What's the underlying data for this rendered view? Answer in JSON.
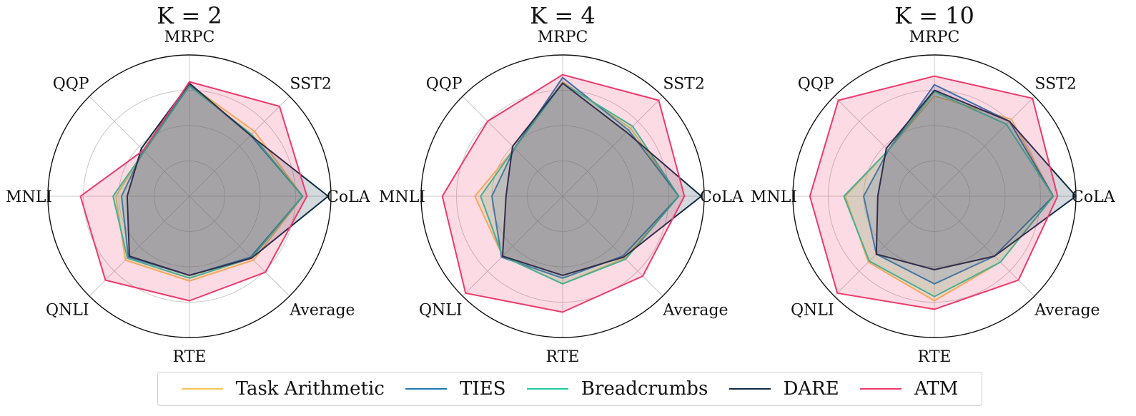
{
  "series_styles": [
    {
      "name": "Task Arithmetic",
      "color": "#f5c35a"
    },
    {
      "name": "TIES",
      "color": "#1f78b4"
    },
    {
      "name": "Breadcrumbs",
      "color": "#1fcc9b"
    },
    {
      "name": "DARE",
      "color": "#0d2b45"
    },
    {
      "name": "ATM",
      "color": "#ee3a6a"
    }
  ],
  "chart_data": [
    {
      "type": "radar",
      "title": "K = 2",
      "axes": [
        "CoLA",
        "SST2",
        "MRPC",
        "QQP",
        "MNLI",
        "QNLI",
        "RTE",
        "Average"
      ],
      "rlim": [
        0,
        1
      ],
      "grid": true,
      "series": [
        {
          "name": "Task Arithmetic",
          "values": [
            0.8,
            0.65,
            0.79,
            0.45,
            0.52,
            0.64,
            0.6,
            0.64
          ]
        },
        {
          "name": "TIES",
          "values": [
            0.8,
            0.61,
            0.79,
            0.46,
            0.48,
            0.61,
            0.56,
            0.61
          ]
        },
        {
          "name": "Breadcrumbs",
          "values": [
            0.8,
            0.62,
            0.78,
            0.45,
            0.54,
            0.62,
            0.58,
            0.62
          ]
        },
        {
          "name": "DARE",
          "values": [
            0.98,
            0.61,
            0.8,
            0.48,
            0.44,
            0.6,
            0.56,
            0.62
          ]
        },
        {
          "name": "ATM",
          "values": [
            0.83,
            0.9,
            0.81,
            0.46,
            0.77,
            0.84,
            0.74,
            0.76
          ]
        }
      ]
    },
    {
      "type": "radar",
      "title": "K = 4",
      "axes": [
        "CoLA",
        "SST2",
        "MRPC",
        "QQP",
        "MNLI",
        "QNLI",
        "RTE",
        "Average"
      ],
      "rlim": [
        0,
        1
      ],
      "grid": true,
      "series": [
        {
          "name": "Task Arithmetic",
          "values": [
            0.82,
            0.68,
            0.81,
            0.48,
            0.62,
            0.6,
            0.62,
            0.62
          ]
        },
        {
          "name": "TIES",
          "values": [
            0.82,
            0.66,
            0.84,
            0.48,
            0.5,
            0.61,
            0.58,
            0.6
          ]
        },
        {
          "name": "Breadcrumbs",
          "values": [
            0.82,
            0.7,
            0.8,
            0.48,
            0.58,
            0.6,
            0.62,
            0.63
          ]
        },
        {
          "name": "DARE",
          "values": [
            0.98,
            0.64,
            0.8,
            0.5,
            0.4,
            0.6,
            0.56,
            0.61
          ]
        },
        {
          "name": "ATM",
          "values": [
            0.86,
            0.96,
            0.86,
            0.75,
            0.85,
            0.97,
            0.82,
            0.8
          ]
        }
      ]
    },
    {
      "type": "radar",
      "title": "K = 10",
      "axes": [
        "CoLA",
        "SST2",
        "MRPC",
        "QQP",
        "MNLI",
        "QNLI",
        "RTE",
        "Average"
      ],
      "rlim": [
        0,
        1
      ],
      "grid": true,
      "series": [
        {
          "name": "Task Arithmetic",
          "values": [
            0.84,
            0.77,
            0.71,
            0.46,
            0.63,
            0.66,
            0.74,
            0.66
          ]
        },
        {
          "name": "TIES",
          "values": [
            0.84,
            0.75,
            0.79,
            0.46,
            0.5,
            0.58,
            0.62,
            0.6
          ]
        },
        {
          "name": "Breadcrumbs",
          "values": [
            0.84,
            0.72,
            0.74,
            0.46,
            0.64,
            0.65,
            0.71,
            0.66
          ]
        },
        {
          "name": "DARE",
          "values": [
            1.0,
            0.75,
            0.75,
            0.48,
            0.4,
            0.58,
            0.52,
            0.6
          ]
        },
        {
          "name": "ATM",
          "values": [
            0.87,
            0.98,
            0.85,
            0.96,
            0.88,
            0.97,
            0.8,
            0.84
          ]
        }
      ]
    }
  ]
}
